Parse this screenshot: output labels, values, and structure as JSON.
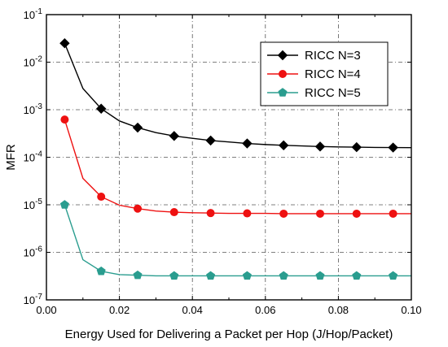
{
  "chart_data": {
    "type": "line",
    "xlabel": "Energy Used for Delivering a Packet per Hop (J/Hop/Packet)",
    "ylabel": "MFR",
    "xlim": [
      0.0,
      0.1
    ],
    "ylim": [
      1e-07,
      0.1
    ],
    "yscale": "log",
    "grid": true,
    "legend_position": "top-right",
    "x_ticks": [
      0.0,
      0.02,
      0.04,
      0.06,
      0.08,
      0.1
    ],
    "x_tick_labels": [
      "0.00",
      "0.02",
      "0.04",
      "0.06",
      "0.08",
      "0.10"
    ],
    "y_tick_exponents": [
      -7,
      -6,
      -5,
      -4,
      -3,
      -2,
      -1
    ],
    "y_tick_base": "10",
    "series": [
      {
        "name": "RICC N=3",
        "color": "#000000",
        "marker": "diamond",
        "curve_x": [
          0.005,
          0.01,
          0.015,
          0.02,
          0.025,
          0.03,
          0.035,
          0.04,
          0.045,
          0.05,
          0.055,
          0.06,
          0.065,
          0.07,
          0.075,
          0.08,
          0.085,
          0.09,
          0.095,
          0.1
        ],
        "curve_y": [
          0.025,
          0.0028,
          0.00105,
          0.00058,
          0.00042,
          0.00033,
          0.00028,
          0.00025,
          0.000225,
          0.00021,
          0.000195,
          0.000185,
          0.000178,
          0.000173,
          0.000168,
          0.000165,
          0.000163,
          0.000161,
          0.00016,
          0.000159
        ],
        "marker_x": [
          0.005,
          0.015,
          0.025,
          0.035,
          0.045,
          0.055,
          0.065,
          0.075,
          0.085,
          0.095
        ],
        "marker_y": [
          0.025,
          0.00105,
          0.00042,
          0.00028,
          0.000225,
          0.000195,
          0.000178,
          0.000168,
          0.000163,
          0.00016
        ]
      },
      {
        "name": "RICC N=4",
        "color": "#ee1111",
        "marker": "circle",
        "curve_x": [
          0.005,
          0.01,
          0.015,
          0.02,
          0.025,
          0.03,
          0.035,
          0.04,
          0.045,
          0.05,
          0.055,
          0.06,
          0.065,
          0.07,
          0.075,
          0.08,
          0.085,
          0.09,
          0.095,
          0.1
        ],
        "curve_y": [
          0.00062,
          3.6e-05,
          1.48e-05,
          9.8e-06,
          8.3e-06,
          7.4e-06,
          7e-06,
          6.8e-06,
          6.7e-06,
          6.6e-06,
          6.6e-06,
          6.6e-06,
          6.5e-06,
          6.5e-06,
          6.5e-06,
          6.5e-06,
          6.5e-06,
          6.5e-06,
          6.5e-06,
          6.5e-06
        ],
        "marker_x": [
          0.005,
          0.015,
          0.025,
          0.035,
          0.045,
          0.055,
          0.065,
          0.075,
          0.085,
          0.095
        ],
        "marker_y": [
          0.00062,
          1.48e-05,
          8.3e-06,
          7e-06,
          6.7e-06,
          6.6e-06,
          6.5e-06,
          6.5e-06,
          6.5e-06,
          6.5e-06
        ]
      },
      {
        "name": "RICC N=5",
        "color": "#2a9d8f",
        "marker": "pentagon",
        "curve_x": [
          0.005,
          0.01,
          0.015,
          0.02,
          0.025,
          0.03,
          0.035,
          0.04,
          0.045,
          0.05,
          0.055,
          0.06,
          0.065,
          0.07,
          0.075,
          0.08,
          0.085,
          0.09,
          0.095,
          0.1
        ],
        "curve_y": [
          1e-05,
          7e-07,
          4e-07,
          3.4e-07,
          3.3e-07,
          3.2e-07,
          3.2e-07,
          3.2e-07,
          3.2e-07,
          3.2e-07,
          3.2e-07,
          3.2e-07,
          3.2e-07,
          3.2e-07,
          3.2e-07,
          3.2e-07,
          3.2e-07,
          3.2e-07,
          3.2e-07,
          3.2e-07
        ],
        "marker_x": [
          0.005,
          0.015,
          0.025,
          0.035,
          0.045,
          0.055,
          0.065,
          0.075,
          0.085,
          0.095
        ],
        "marker_y": [
          1e-05,
          4e-07,
          3.3e-07,
          3.2e-07,
          3.2e-07,
          3.2e-07,
          3.2e-07,
          3.2e-07,
          3.2e-07,
          3.2e-07
        ]
      }
    ]
  }
}
